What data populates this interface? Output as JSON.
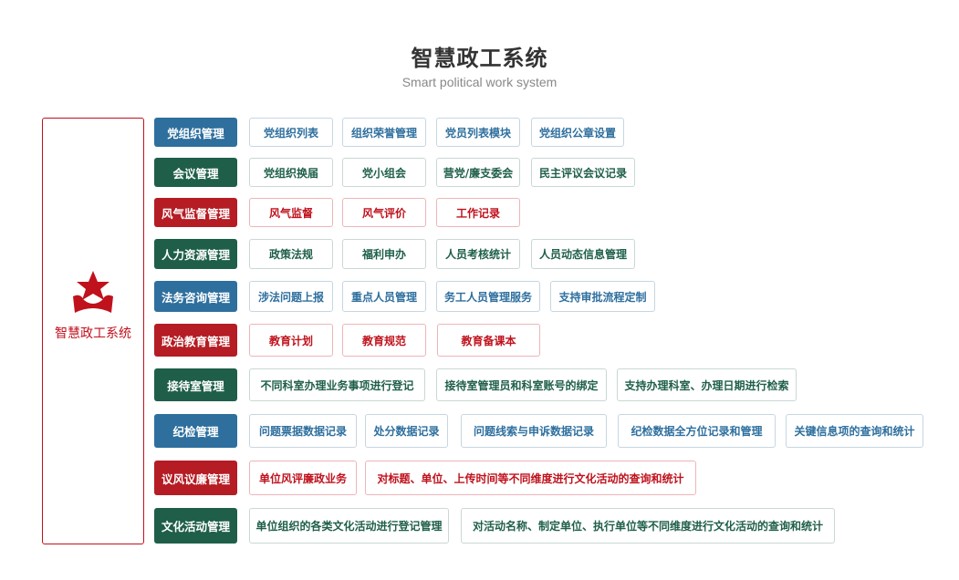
{
  "header": {
    "title": "智慧政工系统",
    "subtitle": "Smart political work system"
  },
  "sidebar": {
    "label": "智慧政工系统",
    "icon": "red-star-logo-icon"
  },
  "colors": {
    "blue": "#2e6f9e",
    "green": "#1f5f4a",
    "red": "#b51c24"
  },
  "modules": [
    {
      "label": "党组织管理",
      "color": "blue",
      "items": [
        "党组织列表",
        "组织荣誉管理",
        "党员列表模块",
        "党组织公章设置"
      ]
    },
    {
      "label": "会议管理",
      "color": "green",
      "items": [
        "党组织换届",
        "党小组会",
        "营党/廉支委会",
        "民主评议会议记录"
      ]
    },
    {
      "label": "风气监督管理",
      "color": "red",
      "items": [
        "风气监督",
        "风气评价",
        "工作记录"
      ]
    },
    {
      "label": "人力资源管理",
      "color": "green",
      "items": [
        "政策法规",
        "福利申办",
        "人员考核统计",
        "人员动态信息管理"
      ]
    },
    {
      "label": "法务咨询管理",
      "color": "blue",
      "items": [
        "涉法问题上报",
        "重点人员管理",
        "务工人员管理服务",
        "支持审批流程定制"
      ]
    },
    {
      "label": "政治教育管理",
      "color": "red",
      "items": [
        "教育计划",
        "教育规范",
        "教育备课本"
      ]
    },
    {
      "label": "接待室管理",
      "color": "green",
      "items": [
        "不同科室办理业务事项进行登记",
        "接待室管理员和科室账号的绑定",
        "支持办理科室、办理日期进行检索"
      ]
    },
    {
      "label": "纪检管理",
      "color": "blue",
      "items": [
        "问题票据数据记录",
        "处分数据记录",
        "问题线索与申诉数据记录",
        "纪检数据全方位记录和管理",
        "关键信息项的查询和统计"
      ]
    },
    {
      "label": "议风议廉管理",
      "color": "red",
      "items": [
        "单位风评廉政业务",
        "对标题、单位、上传时间等不同维度进行文化活动的查询和统计"
      ]
    },
    {
      "label": "文化活动管理",
      "color": "green",
      "items": [
        "单位组织的各类文化活动进行登记管理",
        "对活动名称、制定单位、执行单位等不同维度进行文化活动的查询和统计"
      ]
    }
  ]
}
